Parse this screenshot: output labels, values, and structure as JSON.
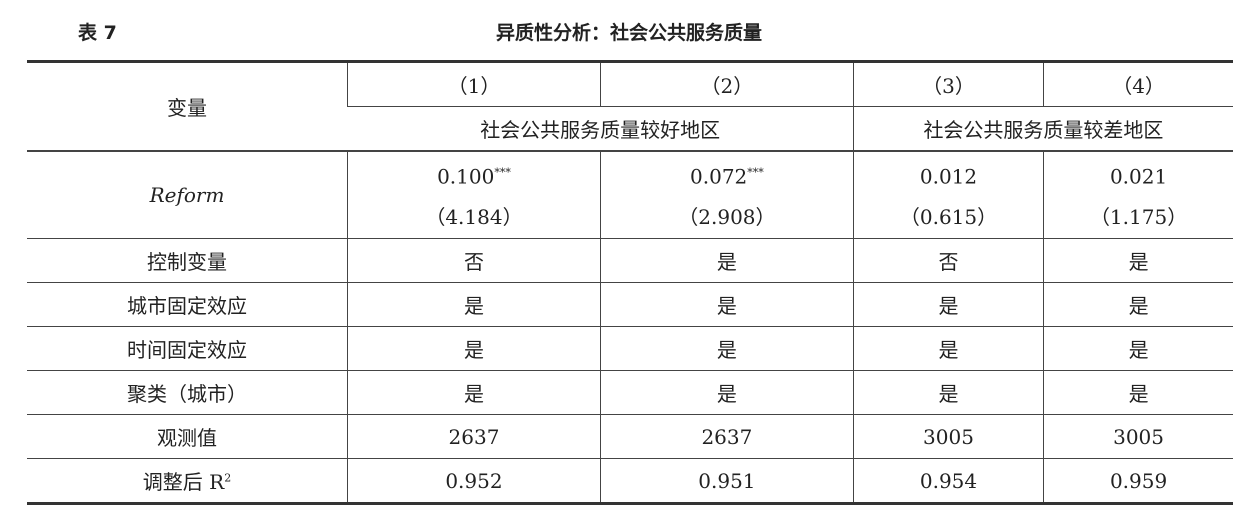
{
  "caption": {
    "number": "表 7",
    "title": "异质性分析：社会公共服务质量"
  },
  "header": {
    "variable": "变量",
    "columns": [
      "（1）",
      "（2）",
      "（3）",
      "（4）"
    ],
    "groups": [
      "社会公共服务质量较好地区",
      "社会公共服务质量较差地区"
    ]
  },
  "reform": {
    "label": "Reform",
    "coef": [
      "0.100",
      "0.072",
      "0.012",
      "0.021"
    ],
    "stars": [
      "***",
      "***",
      "",
      ""
    ],
    "t": [
      "（4.184）",
      "（2.908）",
      "（0.615）",
      "（1.175）"
    ]
  },
  "rows": [
    {
      "label": "控制变量",
      "values": [
        "否",
        "是",
        "否",
        "是"
      ]
    },
    {
      "label": "城市固定效应",
      "values": [
        "是",
        "是",
        "是",
        "是"
      ]
    },
    {
      "label": "时间固定效应",
      "values": [
        "是",
        "是",
        "是",
        "是"
      ]
    },
    {
      "label": "聚类（城市）",
      "values": [
        "是",
        "是",
        "是",
        "是"
      ]
    },
    {
      "label": "观测值",
      "values": [
        "2637",
        "2637",
        "3005",
        "3005"
      ]
    },
    {
      "label": "调整后 R",
      "sup": "2",
      "values": [
        "0.952",
        "0.951",
        "0.954",
        "0.959"
      ]
    }
  ]
}
